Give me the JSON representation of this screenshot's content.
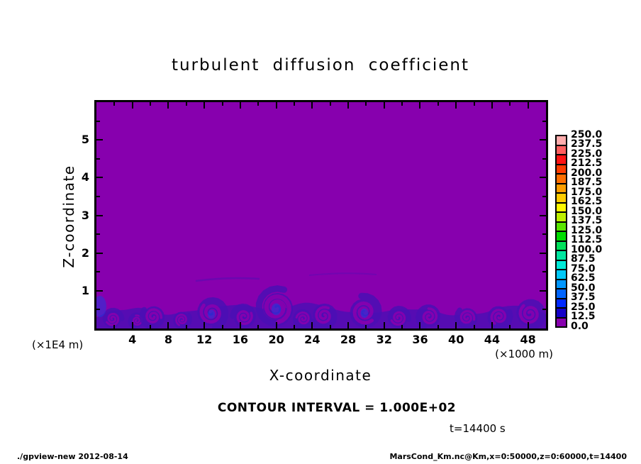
{
  "title": "turbulent diffusion coefficient",
  "yaxis": {
    "label": "Z-coordinate",
    "unit": "(×1E4 m)",
    "ticks": [
      1,
      2,
      3,
      4,
      5
    ]
  },
  "xaxis": {
    "label": "X-coordinate",
    "unit": "(×1000 m)",
    "ticks": [
      4,
      8,
      12,
      16,
      20,
      24,
      28,
      32,
      36,
      40,
      44,
      48
    ]
  },
  "annotations": {
    "contour_interval": "CONTOUR INTERVAL = 1.000E+02",
    "time": "t=14400 s"
  },
  "footer": {
    "left": "./gpview-new  2012-08-14",
    "right": "MarsCond_Km.nc@Km,x=0:50000,z=0:60000,t=14400"
  },
  "colorbar": {
    "labels": [
      "250.0",
      "237.5",
      "225.0",
      "212.5",
      "200.0",
      "187.5",
      "175.0",
      "162.5",
      "150.0",
      "137.5",
      "125.0",
      "112.5",
      "100.0",
      "87.5",
      "75.0",
      "62.5",
      "50.0",
      "37.5",
      "25.0",
      "12.5",
      "0.0"
    ],
    "colors": [
      "#FFACAC",
      "#FF5E5E",
      "#FF1414",
      "#FF3C00",
      "#FF6E00",
      "#FF9E00",
      "#FFCC00",
      "#FFF800",
      "#BEF000",
      "#5AE600",
      "#00DC00",
      "#00E05A",
      "#00E6A0",
      "#00EAD8",
      "#00C8F8",
      "#0096FF",
      "#0064FF",
      "#0028FF",
      "#1400C8",
      "#8700AE"
    ]
  },
  "chart_data": {
    "type": "heatmap",
    "title": "turbulent diffusion coefficient",
    "xlabel": "X-coordinate",
    "ylabel": "Z-coordinate",
    "x_unit": "(×1000 m)",
    "y_unit": "(×1E4 m)",
    "xlim": [
      0,
      50
    ],
    "ylim": [
      0,
      6
    ],
    "x_ticks": [
      4,
      8,
      12,
      16,
      20,
      24,
      28,
      32,
      36,
      40,
      44,
      48
    ],
    "y_ticks": [
      1,
      2,
      3,
      4,
      5
    ],
    "x_minor_step": 2,
    "y_minor_step": 0.5,
    "levels": [
      0,
      12.5,
      25,
      37.5,
      50,
      62.5,
      75,
      87.5,
      100,
      112.5,
      125,
      137.5,
      150,
      162.5,
      175,
      187.5,
      200,
      212.5,
      225,
      237.5,
      250
    ],
    "contour_interval": 100,
    "time_s": 14400,
    "background_level_range": [
      0,
      12.5
    ],
    "field_summary": "Field is uniform in the lowest bin (0–12.5, purple) over nearly the whole domain; a shallow turbulent layer below z≈1 (×1E4 m) shows eddies with values in the 12.5–50 range (indigo/blue curls).",
    "eddies": [
      {
        "x": 1.8,
        "top_z": 0.5
      },
      {
        "x": 4.5,
        "top_z": 0.4
      },
      {
        "x": 6.3,
        "top_z": 0.6
      },
      {
        "x": 9.5,
        "top_z": 0.45
      },
      {
        "x": 12.8,
        "top_z": 0.8
      },
      {
        "x": 16.4,
        "top_z": 0.6
      },
      {
        "x": 20.0,
        "top_z": 1.05
      },
      {
        "x": 23.0,
        "top_z": 0.5
      },
      {
        "x": 25.3,
        "top_z": 0.65
      },
      {
        "x": 29.8,
        "top_z": 0.85
      },
      {
        "x": 33.6,
        "top_z": 0.55
      },
      {
        "x": 37.0,
        "top_z": 0.6
      },
      {
        "x": 41.2,
        "top_z": 0.55
      },
      {
        "x": 44.8,
        "top_z": 0.6
      },
      {
        "x": 48.2,
        "top_z": 0.75
      }
    ]
  }
}
